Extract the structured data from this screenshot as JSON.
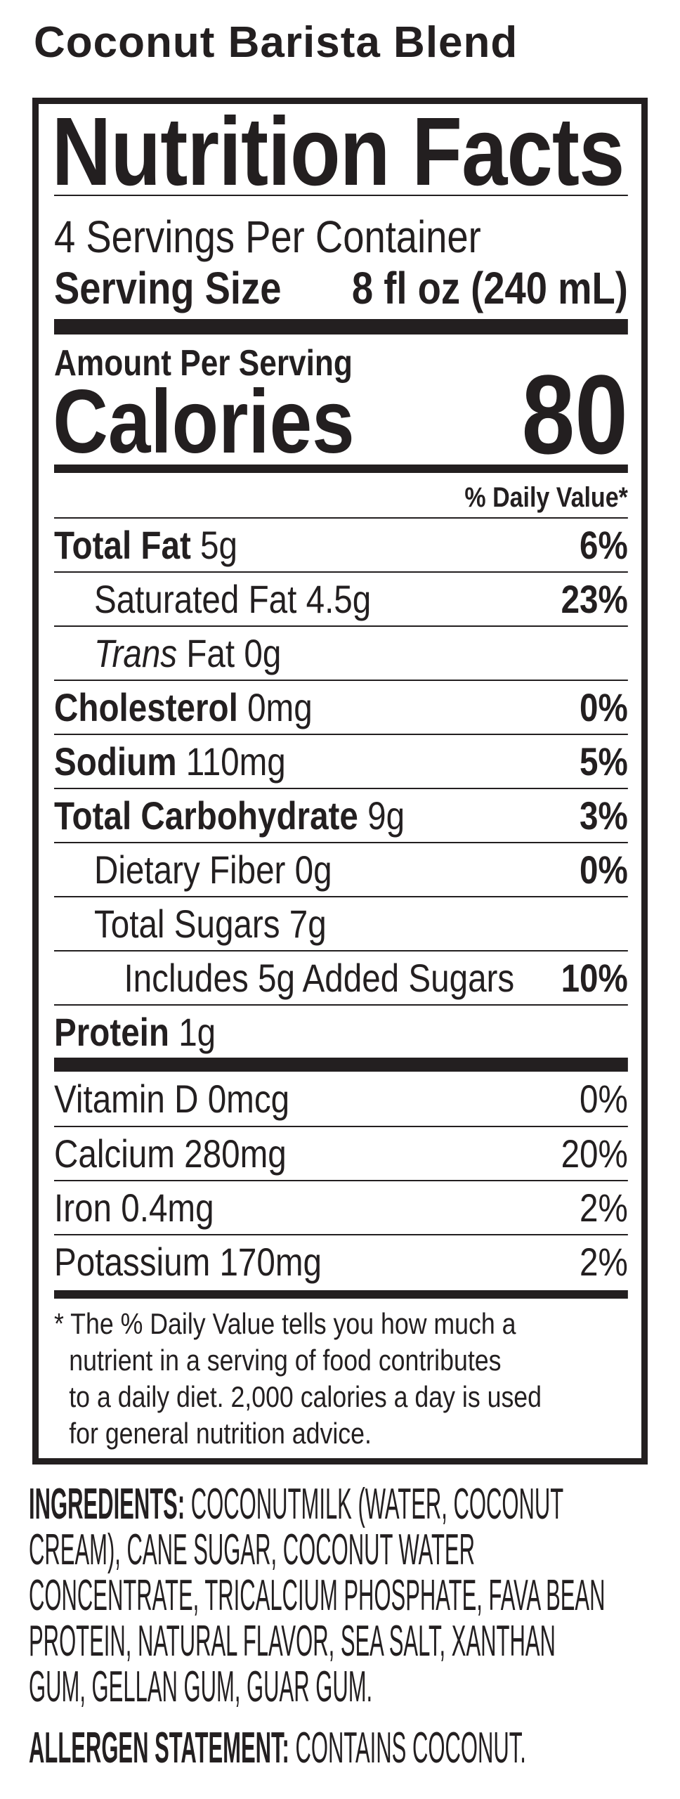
{
  "product_title": "Coconut Barista Blend",
  "label": {
    "title": "Nutrition Facts",
    "servings_per_container": "4 Servings Per Container",
    "serving_size_label": "Serving Size",
    "serving_size_value": "8 fl oz (240 mL)",
    "amount_per_serving": "Amount Per Serving",
    "calories_label": "Calories",
    "calories_value": "80",
    "dv_header": "% Daily Value*",
    "nutrients": [
      {
        "name": "Total Fat",
        "amount": "5g",
        "dv": "6%"
      },
      {
        "name": "Saturated Fat",
        "amount": "4.5g",
        "dv": "23%"
      },
      {
        "name_italic": "Trans",
        "name": "Fat",
        "amount": "0g",
        "dv": ""
      },
      {
        "name": "Cholesterol",
        "amount": "0mg",
        "dv": "0%"
      },
      {
        "name": "Sodium",
        "amount": "110mg",
        "dv": "5%"
      },
      {
        "name": "Total Carbohydrate",
        "amount": "9g",
        "dv": "3%"
      },
      {
        "name": "Dietary Fiber",
        "amount": "0g",
        "dv": "0%"
      },
      {
        "name": "Total Sugars",
        "amount": "7g",
        "dv": ""
      },
      {
        "name": "Includes 5g Added Sugars",
        "amount": "",
        "dv": "10%"
      },
      {
        "name": "Protein",
        "amount": "1g",
        "dv": ""
      }
    ],
    "vitamins": [
      {
        "name": "Vitamin D",
        "amount": "0mcg",
        "dv": "0%"
      },
      {
        "name": "Calcium",
        "amount": "280mg",
        "dv": "20%"
      },
      {
        "name": "Iron",
        "amount": "0.4mg",
        "dv": "2%"
      },
      {
        "name": "Potassium",
        "amount": "170mg",
        "dv": "2%"
      }
    ],
    "footnote_lines": [
      "* The % Daily Value tells you how much a",
      "nutrient in a serving of food contributes",
      "to a daily diet. 2,000 calories a day is used",
      "for general nutrition advice."
    ]
  },
  "ingredients": {
    "label": "INGREDIENTS:",
    "lines": [
      "COCONUTMILK (WATER, COCONUT",
      "CREAM), CANE SUGAR, COCONUT WATER",
      "CONCENTRATE, TRICALCIUM PHOSPHATE, FAVA BEAN",
      "PROTEIN, NATURAL FLAVOR, SEA SALT, XANTHAN",
      "GUM, GELLAN GUM, GUAR GUM."
    ]
  },
  "allergen": {
    "label": "ALLERGEN STATEMENT:",
    "text": "CONTAINS COCONUT."
  }
}
